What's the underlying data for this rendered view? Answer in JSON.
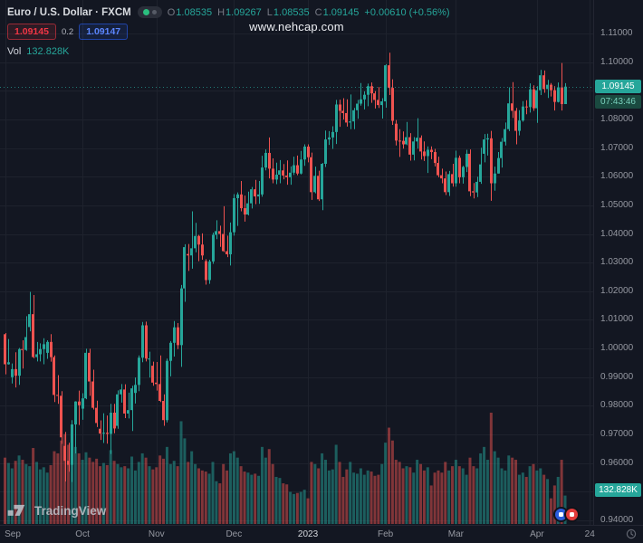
{
  "header": {
    "symbol_title": "Euro / U.S. Dollar · FXCM",
    "ohlc": {
      "o_label": "O",
      "o_value": "1.08535",
      "h_label": "H",
      "h_value": "1.09267",
      "l_label": "L",
      "l_value": "1.08535",
      "c_label": "C",
      "c_value": "1.09145",
      "change_value": "+0.00610 (+0.56%)"
    },
    "trade": {
      "sell_price": "1.09145",
      "spread": "0.2",
      "buy_price": "1.09147"
    },
    "volume_row": {
      "label": "Vol",
      "value": "132.828K"
    }
  },
  "watermark": {
    "text": "www.nehcap.com"
  },
  "price_axis": {
    "labels": [
      "1.11000",
      "1.10000",
      "1.09000",
      "1.08000",
      "1.07000",
      "1.06000",
      "1.05000",
      "1.04000",
      "1.03000",
      "1.02000",
      "1.01000",
      "1.00000",
      "0.99000",
      "0.98000",
      "0.97000",
      "0.96000",
      "0.95000",
      "0.94000"
    ],
    "last_price_tag": "1.09145",
    "countdown_tag": "07:43:46",
    "volume_tag": "132.828K"
  },
  "footer": {
    "logo_text": "TradingView"
  },
  "colors": {
    "bg": "#131722",
    "grid": "#1e222d",
    "up": "#26a69a",
    "down": "#ef5350",
    "sell_red": "#f23645",
    "buy_blue": "#2962ff",
    "last_price_bg": "#26a69a",
    "countdown_bg": "#1a4a40",
    "axis_text": "#9598a1"
  },
  "chart_data": {
    "type": "candlestick",
    "title": "Euro / U.S. Dollar · FXCM, 1D with volume",
    "symbol": "EURUSD",
    "y_axis": {
      "min": 0.94,
      "max": 1.11,
      "step": 0.01
    },
    "x_labels": [
      {
        "text": "Sep",
        "index": 0
      },
      {
        "text": "Oct",
        "index": 22
      },
      {
        "text": "Nov",
        "index": 43
      },
      {
        "text": "Dec",
        "index": 65
      },
      {
        "text": "2023",
        "index": 86,
        "emphasis": true
      },
      {
        "text": "Feb",
        "index": 108
      },
      {
        "text": "Mar",
        "index": 128
      },
      {
        "text": "Apr",
        "index": 151
      },
      {
        "text": "24",
        "index": 166
      }
    ],
    "series_note": "candles = [open, high, low, close, volume_thousands], daily Sep 2022 - Apr 2023",
    "candles": [
      [
        1.005,
        1.0054,
        0.991,
        0.9945,
        310
      ],
      [
        0.9945,
        1.0033,
        0.9944,
        0.9952,
        285
      ],
      [
        0.99,
        0.9948,
        0.9878,
        0.9928,
        260
      ],
      [
        0.9928,
        0.9987,
        0.9864,
        0.9905,
        295
      ],
      [
        0.9905,
        1.0002,
        0.9873,
        0.9998,
        320
      ],
      [
        0.9998,
        1.0029,
        0.993,
        0.9995,
        300
      ],
      [
        0.9995,
        1.0113,
        0.9992,
        1.004,
        280
      ],
      [
        1.0075,
        1.0198,
        1.006,
        1.012,
        270
      ],
      [
        1.012,
        1.0187,
        0.9966,
        0.997,
        355
      ],
      [
        0.997,
        1.0023,
        0.9955,
        0.998,
        290
      ],
      [
        0.998,
        1.0018,
        0.9955,
        0.9998,
        255
      ],
      [
        0.9998,
        1.0036,
        0.9945,
        1.0015,
        265
      ],
      [
        0.9985,
        1.0029,
        0.9964,
        1.0023,
        240
      ],
      [
        1.0023,
        1.005,
        0.9954,
        0.997,
        275
      ],
      [
        0.997,
        0.9976,
        0.9813,
        0.9838,
        340
      ],
      [
        0.9838,
        0.9907,
        0.9807,
        0.9835,
        330
      ],
      [
        0.9835,
        0.9851,
        0.9667,
        0.969,
        390
      ],
      [
        0.966,
        0.9709,
        0.9536,
        0.9608,
        420
      ],
      [
        0.9608,
        0.9671,
        0.957,
        0.9594,
        370
      ],
      [
        0.9594,
        0.975,
        0.9534,
        0.9735,
        430
      ],
      [
        0.9735,
        0.9816,
        0.9634,
        0.9815,
        360
      ],
      [
        0.9815,
        0.9853,
        0.9733,
        0.9802,
        330
      ],
      [
        0.979,
        0.9844,
        0.9751,
        0.9826,
        300
      ],
      [
        0.9826,
        0.9999,
        0.9823,
        0.9985,
        335
      ],
      [
        0.9985,
        0.9999,
        0.9835,
        0.9885,
        310
      ],
      [
        0.9885,
        0.9926,
        0.9787,
        0.9793,
        290
      ],
      [
        0.9793,
        0.9818,
        0.9726,
        0.974,
        305
      ],
      [
        0.972,
        0.9749,
        0.9681,
        0.9703,
        270
      ],
      [
        0.9703,
        0.9774,
        0.967,
        0.9706,
        285
      ],
      [
        0.9706,
        0.9766,
        0.9668,
        0.9702,
        275
      ],
      [
        0.9702,
        0.9807,
        0.9632,
        0.9776,
        345
      ],
      [
        0.9776,
        0.9807,
        0.9704,
        0.9721,
        295
      ],
      [
        0.973,
        0.9854,
        0.972,
        0.984,
        280
      ],
      [
        0.984,
        0.9876,
        0.9811,
        0.9857,
        265
      ],
      [
        0.9857,
        0.9875,
        0.9757,
        0.9773,
        270
      ],
      [
        0.9773,
        0.9846,
        0.9756,
        0.9785,
        260
      ],
      [
        0.9785,
        0.987,
        0.9712,
        0.9861,
        315
      ],
      [
        0.9845,
        0.9899,
        0.9808,
        0.9873,
        250
      ],
      [
        0.9873,
        0.9976,
        0.9851,
        0.9968,
        290
      ],
      [
        0.9968,
        1.0093,
        0.9952,
        1.0081,
        330
      ],
      [
        1.0081,
        1.0094,
        0.9955,
        0.9965,
        310
      ],
      [
        0.9965,
        0.9989,
        0.9899,
        0.9965,
        270
      ],
      [
        0.994,
        0.9954,
        0.987,
        0.9881,
        255
      ],
      [
        0.9881,
        0.9953,
        0.9853,
        0.9876,
        265
      ],
      [
        0.9876,
        0.9976,
        0.9813,
        0.9817,
        320
      ],
      [
        0.9817,
        0.984,
        0.973,
        0.975,
        305
      ],
      [
        0.975,
        0.9965,
        0.9742,
        0.9957,
        360
      ],
      [
        0.9957,
        1.0026,
        0.9903,
        1.002,
        280
      ],
      [
        1.002,
        1.0096,
        0.9972,
        1.0074,
        295
      ],
      [
        1.0074,
        1.0089,
        0.9998,
        1.0012,
        270
      ],
      [
        1.0012,
        1.0222,
        0.9936,
        1.021,
        480
      ],
      [
        1.021,
        1.0364,
        1.0163,
        1.0354,
        400
      ],
      [
        1.033,
        1.0365,
        1.0271,
        1.0325,
        290
      ],
      [
        1.0325,
        1.0479,
        1.0279,
        1.035,
        340
      ],
      [
        1.035,
        1.0439,
        1.0336,
        1.0393,
        280
      ],
      [
        1.0393,
        1.0397,
        1.0305,
        1.0363,
        260
      ],
      [
        1.0363,
        1.0402,
        1.031,
        1.0325,
        250
      ],
      [
        1.0305,
        1.0312,
        1.0223,
        1.0239,
        245
      ],
      [
        1.0239,
        1.031,
        1.0226,
        1.0304,
        235
      ],
      [
        1.0304,
        1.0405,
        1.0296,
        1.0397,
        290
      ],
      [
        1.0397,
        1.0448,
        1.0382,
        1.041,
        200
      ],
      [
        1.041,
        1.0429,
        1.0355,
        1.04,
        190
      ],
      [
        1.04,
        1.0497,
        1.0337,
        1.034,
        280
      ],
      [
        1.034,
        1.0394,
        1.0319,
        1.0329,
        250
      ],
      [
        1.0329,
        1.044,
        1.029,
        1.0406,
        330
      ],
      [
        1.0406,
        1.0539,
        1.0394,
        1.0525,
        340
      ],
      [
        1.0525,
        1.0545,
        1.0428,
        1.0538,
        310
      ],
      [
        1.0538,
        1.0585,
        1.0479,
        1.049,
        270
      ],
      [
        1.049,
        1.0534,
        1.0443,
        1.0468,
        245
      ],
      [
        1.0468,
        1.0548,
        1.0465,
        1.0507,
        240
      ],
      [
        1.0507,
        1.0564,
        1.0489,
        1.0556,
        230
      ],
      [
        1.0556,
        1.0589,
        1.0504,
        1.0531,
        235
      ],
      [
        1.0531,
        1.0585,
        1.0505,
        1.0538,
        225
      ],
      [
        1.0538,
        1.0673,
        1.053,
        1.0632,
        360
      ],
      [
        1.0632,
        1.0695,
        1.0622,
        1.0683,
        310
      ],
      [
        1.0683,
        1.0737,
        1.0594,
        1.0628,
        350
      ],
      [
        1.0628,
        1.0664,
        1.0577,
        1.059,
        280
      ],
      [
        1.059,
        1.0649,
        1.0574,
        1.0607,
        220
      ],
      [
        1.0607,
        1.0658,
        1.0577,
        1.0622,
        215
      ],
      [
        1.0622,
        1.0644,
        1.0591,
        1.0604,
        190
      ],
      [
        1.0604,
        1.0657,
        1.0572,
        1.0598,
        185
      ],
      [
        1.0598,
        1.0636,
        1.0572,
        1.0614,
        150
      ],
      [
        1.0614,
        1.067,
        1.0606,
        1.064,
        140
      ],
      [
        1.064,
        1.0674,
        1.0605,
        1.0611,
        145
      ],
      [
        1.0611,
        1.069,
        1.0608,
        1.066,
        150
      ],
      [
        1.066,
        1.0713,
        1.0638,
        1.0705,
        160
      ],
      [
        1.0705,
        1.0713,
        1.065,
        1.0668,
        120
      ],
      [
        1.0668,
        1.0684,
        1.0519,
        1.0546,
        290
      ],
      [
        1.0546,
        1.0635,
        1.0542,
        1.0603,
        280
      ],
      [
        1.0603,
        1.0621,
        1.0515,
        1.0521,
        260
      ],
      [
        1.0521,
        1.0648,
        1.0483,
        1.0645,
        330
      ],
      [
        1.0645,
        1.0761,
        1.0634,
        1.073,
        300
      ],
      [
        1.073,
        1.0759,
        1.0711,
        1.0737,
        250
      ],
      [
        1.0737,
        1.0776,
        1.0697,
        1.0756,
        255
      ],
      [
        1.0756,
        1.0868,
        1.0714,
        1.0852,
        370
      ],
      [
        1.0852,
        1.0869,
        1.0774,
        1.083,
        290
      ],
      [
        1.083,
        1.0874,
        1.08,
        1.0822,
        220
      ],
      [
        1.0822,
        1.087,
        1.0775,
        1.0789,
        255
      ],
      [
        1.0789,
        1.0887,
        1.0766,
        1.0793,
        290
      ],
      [
        1.0793,
        1.084,
        1.0766,
        1.0832,
        240
      ],
      [
        1.0832,
        1.0868,
        1.0802,
        1.0855,
        235
      ],
      [
        1.0855,
        1.0927,
        1.0848,
        1.087,
        260
      ],
      [
        1.087,
        1.0898,
        1.0835,
        1.0886,
        230
      ],
      [
        1.0886,
        1.0925,
        1.0846,
        1.0916,
        250
      ],
      [
        1.0916,
        1.0929,
        1.0858,
        1.0891,
        245
      ],
      [
        1.0891,
        1.0899,
        1.0838,
        1.0868,
        225
      ],
      [
        1.0868,
        1.0913,
        1.084,
        1.085,
        230
      ],
      [
        1.085,
        1.0874,
        1.0803,
        1.0863,
        280
      ],
      [
        1.0863,
        1.0993,
        1.0841,
        1.0989,
        380
      ],
      [
        1.0989,
        1.1033,
        1.0885,
        1.091,
        450
      ],
      [
        1.091,
        1.094,
        1.0781,
        1.0795,
        390
      ],
      [
        1.0785,
        1.0798,
        1.0709,
        1.0726,
        300
      ],
      [
        1.0726,
        1.0766,
        1.0669,
        1.0725,
        290
      ],
      [
        1.0725,
        1.0758,
        1.0698,
        1.0713,
        260
      ],
      [
        1.0713,
        1.0791,
        1.071,
        1.0738,
        270
      ],
      [
        1.0738,
        1.0752,
        1.0656,
        1.0677,
        265
      ],
      [
        1.0677,
        1.0738,
        1.0657,
        1.0723,
        240
      ],
      [
        1.0723,
        1.0804,
        1.0698,
        1.0736,
        300
      ],
      [
        1.0736,
        1.0744,
        1.066,
        1.0688,
        280
      ],
      [
        1.0688,
        1.0723,
        1.0655,
        1.0672,
        250
      ],
      [
        1.0672,
        1.0706,
        1.0613,
        1.0694,
        265
      ],
      [
        1.0694,
        1.0706,
        1.0661,
        1.0686,
        180
      ],
      [
        1.0686,
        1.0697,
        1.0636,
        1.0648,
        240
      ],
      [
        1.0648,
        1.067,
        1.0598,
        1.0605,
        250
      ],
      [
        1.0605,
        1.0628,
        1.0577,
        1.0594,
        240
      ],
      [
        1.0594,
        1.0618,
        1.0536,
        1.0546,
        290
      ],
      [
        1.0546,
        1.062,
        1.0533,
        1.0609,
        250
      ],
      [
        1.0609,
        1.0645,
        1.0565,
        1.0577,
        270
      ],
      [
        1.0577,
        1.0691,
        1.0565,
        1.0666,
        300
      ],
      [
        1.0666,
        1.0674,
        1.0577,
        1.0598,
        270
      ],
      [
        1.0598,
        1.0638,
        1.0576,
        1.0634,
        260
      ],
      [
        1.0634,
        1.0694,
        1.0616,
        1.068,
        230
      ],
      [
        1.068,
        1.0695,
        1.0532,
        1.0549,
        310
      ],
      [
        1.0549,
        1.0578,
        1.0524,
        1.0545,
        270
      ],
      [
        1.0545,
        1.06,
        1.0529,
        1.0582,
        260
      ],
      [
        1.0582,
        1.0701,
        1.0575,
        1.0643,
        330
      ],
      [
        1.068,
        1.0749,
        1.065,
        1.073,
        360
      ],
      [
        1.073,
        1.075,
        1.0674,
        1.0734,
        300
      ],
      [
        1.0734,
        1.076,
        1.0516,
        1.0577,
        520
      ],
      [
        1.0577,
        1.0635,
        1.0551,
        1.0611,
        340
      ],
      [
        1.0611,
        1.0686,
        1.0611,
        1.0665,
        310
      ],
      [
        1.0665,
        1.0735,
        1.0632,
        1.0722,
        260
      ],
      [
        1.0722,
        1.0789,
        1.0709,
        1.0766,
        250
      ],
      [
        1.0766,
        1.0912,
        1.0759,
        1.0856,
        320
      ],
      [
        1.0856,
        1.093,
        1.0805,
        1.083,
        310
      ],
      [
        1.083,
        1.084,
        1.0713,
        1.076,
        300
      ],
      [
        1.076,
        1.0832,
        1.0744,
        1.0796,
        230
      ],
      [
        1.0796,
        1.0864,
        1.0792,
        1.0845,
        240
      ],
      [
        1.0845,
        1.0867,
        1.0818,
        1.0843,
        220
      ],
      [
        1.0843,
        1.0926,
        1.0824,
        1.0905,
        270
      ],
      [
        1.0905,
        1.0919,
        1.083,
        1.0839,
        280
      ],
      [
        1.0839,
        1.0916,
        1.0788,
        1.0902,
        250
      ],
      [
        1.0902,
        1.0973,
        1.0885,
        1.0954,
        260
      ],
      [
        1.0954,
        1.0971,
        1.0893,
        1.0906,
        230
      ],
      [
        1.0906,
        1.0938,
        1.0875,
        1.0921,
        210
      ],
      [
        1.0921,
        1.0927,
        1.088,
        1.0902,
        120
      ],
      [
        1.0902,
        1.0916,
        1.0831,
        1.0861,
        180
      ],
      [
        1.0861,
        1.0929,
        1.0859,
        1.0912,
        220
      ],
      [
        1.0912,
        1.0997,
        1.0831,
        1.08535,
        300
      ],
      [
        1.08535,
        1.09267,
        1.08535,
        1.09145,
        132.828
      ]
    ]
  }
}
